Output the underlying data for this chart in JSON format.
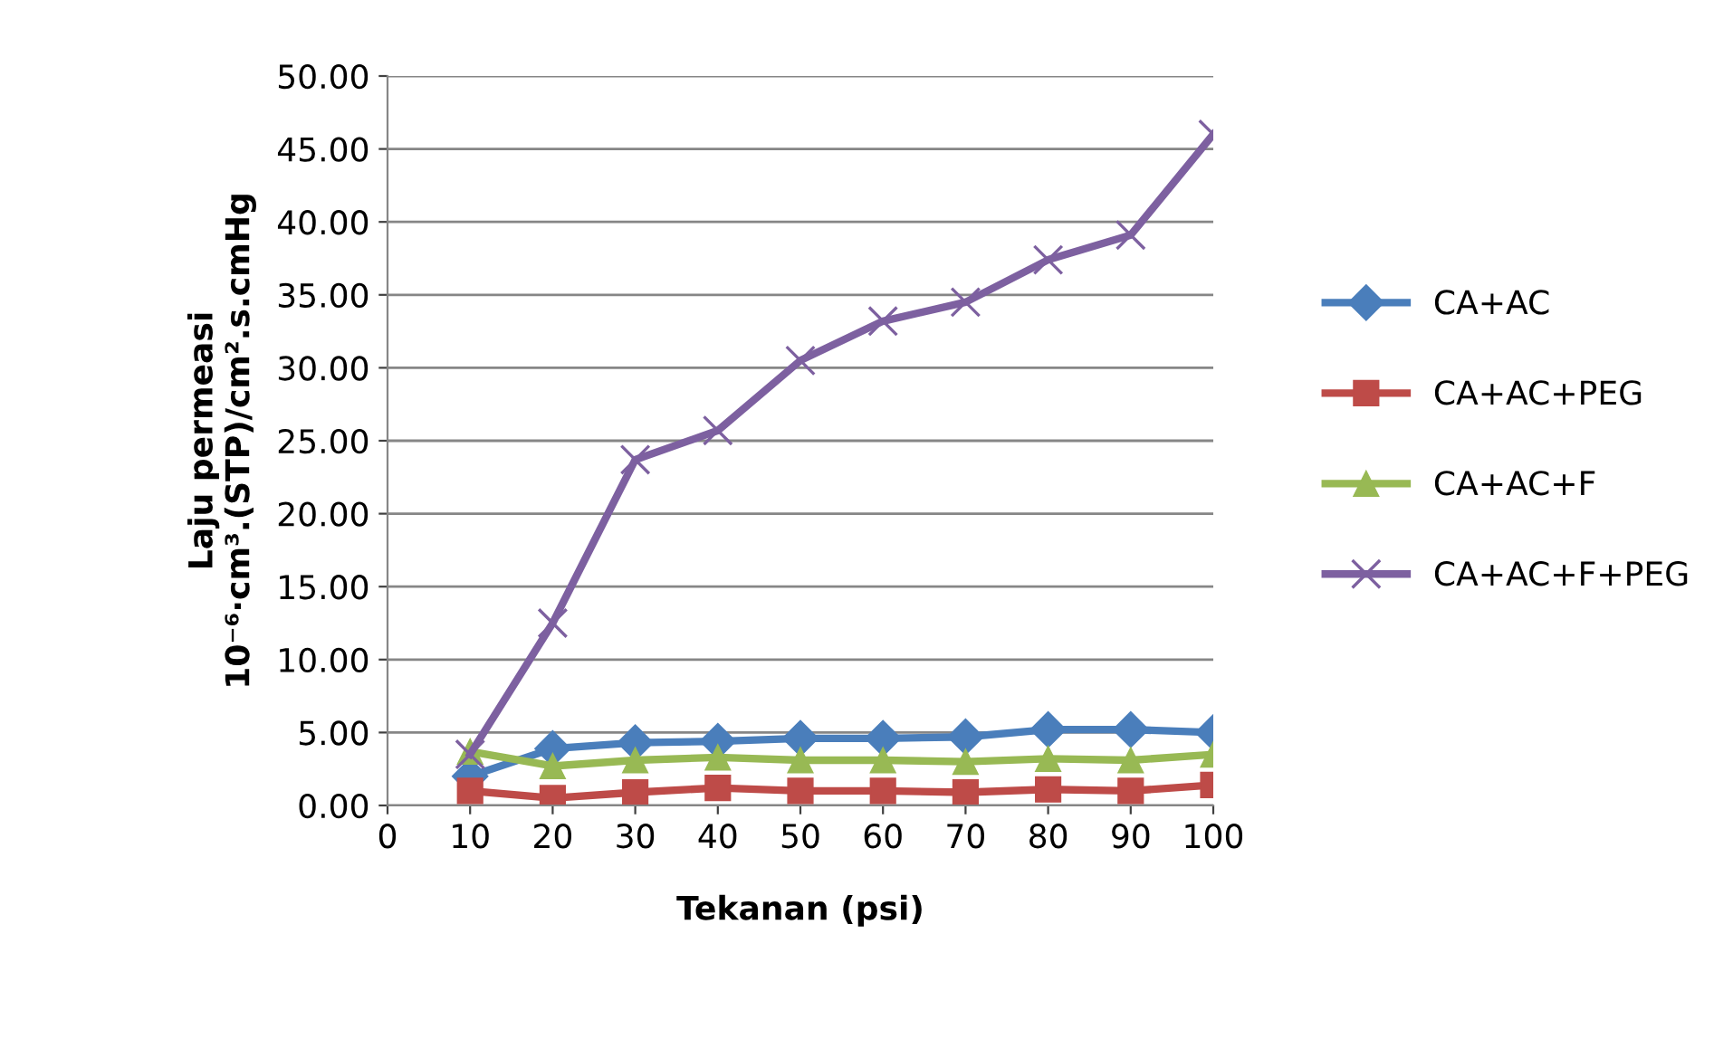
{
  "chart_data": {
    "type": "line",
    "xlabel": "Tekanan (psi)",
    "ylabel": "Laju permeasi\n10⁻⁶·cm³.(STP)/cm².s.cmHg",
    "x": [
      10,
      20,
      30,
      40,
      50,
      60,
      70,
      80,
      90,
      100
    ],
    "series": [
      {
        "name": "CA+AC",
        "color": "#4a7ebb",
        "marker": "diamond",
        "values": [
          2.0,
          3.9,
          4.3,
          4.4,
          4.6,
          4.6,
          4.7,
          5.2,
          5.2,
          5.0
        ]
      },
      {
        "name": "CA+AC+PEG",
        "color": "#be4b48",
        "marker": "square",
        "values": [
          1.0,
          0.5,
          0.9,
          1.2,
          1.0,
          1.0,
          0.9,
          1.1,
          1.0,
          1.4
        ]
      },
      {
        "name": "CA+AC+F",
        "color": "#98b954",
        "marker": "triangle",
        "values": [
          3.7,
          2.7,
          3.1,
          3.3,
          3.1,
          3.1,
          3.0,
          3.2,
          3.1,
          3.5
        ]
      },
      {
        "name": "CA+AC+F+PEG",
        "color": "#7d60a0",
        "marker": "cross",
        "values": [
          3.5,
          12.5,
          23.7,
          25.7,
          30.5,
          33.2,
          34.5,
          37.4,
          39.1,
          46.0
        ]
      }
    ],
    "xlim": [
      0,
      100
    ],
    "xticks": [
      0,
      10,
      20,
      30,
      40,
      50,
      60,
      70,
      80,
      90,
      100
    ],
    "ylim": [
      0,
      50
    ],
    "yticks": [
      {
        "value": 0,
        "label": "0.00"
      },
      {
        "value": 5,
        "label": "5.00"
      },
      {
        "value": 10,
        "label": "10.00"
      },
      {
        "value": 15,
        "label": "15.00"
      },
      {
        "value": 20,
        "label": "20.00"
      },
      {
        "value": 25,
        "label": "25.00"
      },
      {
        "value": 30,
        "label": "30.00"
      },
      {
        "value": 35,
        "label": "35.00"
      },
      {
        "value": 40,
        "label": "40.00"
      },
      {
        "value": 45,
        "label": "45.00"
      },
      {
        "value": 50,
        "label": "50.00"
      }
    ],
    "grid": "y",
    "legend": "right",
    "line_style": "solid"
  }
}
